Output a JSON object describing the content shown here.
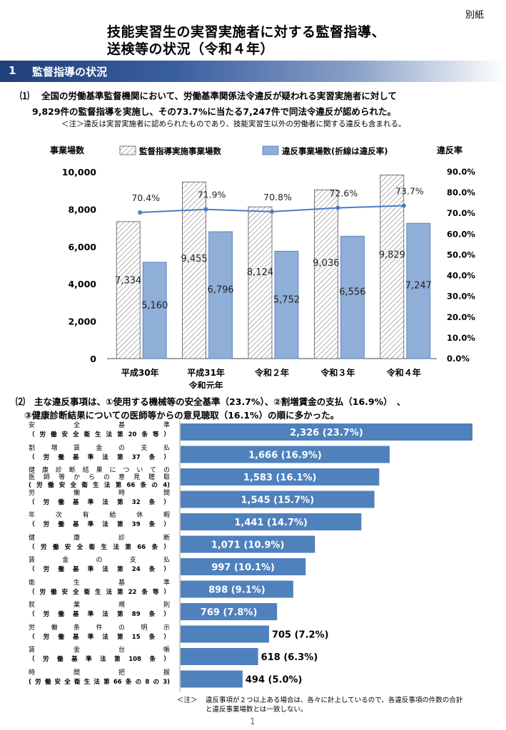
{
  "annex_label": "別紙",
  "title_line1": "技能実習生の実習実施者に対する監督指導、",
  "title_line2": "送検等の状況（令和４年）",
  "section": {
    "number": "1",
    "title": "監督指導の状況"
  },
  "para1": {
    "marker": "⑴",
    "line1": "全国の労働基準監督機関において、労働基準関係法令違反が疑われる実習実施者に対して",
    "line2": "9,829件の監督指導を実施し、その73.7%に当たる7,247件で同法令違反が認められた。",
    "note": "＜注＞違反は実習実施者に認められたものであり、技能実習生以外の労働者に関する違反も含まれる。"
  },
  "chart1": {
    "y_left_title": "事業場数",
    "y_right_title": "違反率",
    "legend": {
      "inspected": "監督指導実施事業場数",
      "violation": "違反事業場数(折線は違反率)"
    },
    "y_left_ticks": [
      "0",
      "2,000",
      "4,000",
      "6,000",
      "8,000",
      "10,000"
    ],
    "y_right_ticks": [
      "0.0%",
      "10.0%",
      "20.0%",
      "30.0%",
      "40.0%",
      "50.0%",
      "60.0%",
      "70.0%",
      "80.0%",
      "90.0%"
    ],
    "category_line1": [
      "平成30年",
      "平成31年",
      "令和２年",
      "令和３年",
      "令和４年"
    ],
    "category_line2": [
      "",
      "令和元年",
      "",
      "",
      ""
    ],
    "inspected_labels": [
      "7,334",
      "9,455",
      "8,124",
      "9,036",
      "9,829"
    ],
    "violation_labels": [
      "5,160",
      "6,796",
      "5,752",
      "6,556",
      "7,247"
    ],
    "rate_labels": [
      "70.4%",
      "71.9%",
      "70.8%",
      "72.6%",
      "73.7%"
    ]
  },
  "chart_data": [
    {
      "type": "bar",
      "categories": [
        "平成30年",
        "平成31年 令和元年",
        "令和２年",
        "令和３年",
        "令和４年"
      ],
      "series": [
        {
          "name": "監督指導実施事業場数",
          "values": [
            7334,
            9455,
            8124,
            9036,
            9829
          ]
        },
        {
          "name": "違反事業場数(折線は違反率)",
          "values": [
            5160,
            6796,
            5752,
            6556,
            7247
          ]
        }
      ],
      "line_series": {
        "values": [
          70.4,
          71.9,
          70.8,
          72.6,
          73.7
        ]
      },
      "ylabel": "事業場数",
      "ylabel_right": "違反率",
      "ylim": [
        0,
        10000
      ],
      "ylim_right": [
        0,
        90
      ],
      "grid": false,
      "legend": "top",
      "colors": {
        "inspected_hatch": "#7f7f7f",
        "violation_fill": "#8faed8",
        "violation_stroke": "#4f7bb8",
        "rate_line": "#4a7bc6"
      }
    },
    {
      "type": "bar",
      "orientation": "horizontal",
      "categories": [
        "安全基準",
        "割増賃金の支払",
        "健康診断結果についての医師等からの意見聴取",
        "労働時間",
        "年次有給休暇",
        "健康診断",
        "賃金の支払",
        "衛生基準",
        "就業規則",
        "労働条件の明示",
        "賃金台帳",
        "時間把握"
      ],
      "values": [
        2326,
        1666,
        1583,
        1545,
        1441,
        1071,
        997,
        898,
        769,
        705,
        618,
        494
      ],
      "percent": [
        23.7,
        16.9,
        16.1,
        15.7,
        14.7,
        10.9,
        10.1,
        9.1,
        7.8,
        7.2,
        6.3,
        5.0
      ],
      "colors": {
        "bar": "#4f81bd"
      }
    }
  ],
  "para2": {
    "marker": "⑵",
    "line1": "主な違反事項は、①使用する機械等の安全基準（23.7%）、②割増賃金の支払（16.9%）　、",
    "line2": "③健康診断結果についての医師等からの意見聴取（16.1%）の順に多かった。"
  },
  "hbar": {
    "rows": [
      {
        "name": "安全基準",
        "law": "（労働安全衛生法第20条等）",
        "label": "2,326 (23.7%)"
      },
      {
        "name": "割増賃金の支払",
        "law": "（労働基準法第37条）",
        "label": "1,666 (16.9%)"
      },
      {
        "name": "健康診断結果についての",
        "name2": "医師等からの意見聴取",
        "law": "(労働安全衛生法第66条の4)",
        "label": "1,583 (16.1%)"
      },
      {
        "name": "労働時間",
        "law": "（労働基準法第32条）",
        "label": "1,545 (15.7%)"
      },
      {
        "name": "年次有給休暇",
        "law": "（労働基準法第39条）",
        "label": "1,441 (14.7%)"
      },
      {
        "name": "健康診断",
        "law": "（労働安全衛生法第66条）",
        "label": "1,071 (10.9%)"
      },
      {
        "name": "賃金の支払",
        "law": "（労働基準法第24条）",
        "label": "997 (10.1%)"
      },
      {
        "name": "衛生基準",
        "law": "（労働安全衛生法第22条等）",
        "label": "898 (9.1%)"
      },
      {
        "name": "就業規則",
        "law": "（労働基準法第89条）",
        "label": "769 (7.8%)"
      },
      {
        "name": "労働条件の明示",
        "law": "（労働基準法第15条）",
        "label": "705 (7.2%)"
      },
      {
        "name": "賃金台帳",
        "law": "（労働基準法第108条）",
        "label": "618 (6.3%)"
      },
      {
        "name": "時間把握",
        "law": "(労働安全衛生法第66条の8の3)",
        "label": "494 (5.0%)"
      }
    ],
    "note_head": "＜注＞",
    "note_line1": "違反事項が２つ以上ある場合は、各々に計上しているので、各違反事項の件数の合計",
    "note_line2": "と違反事業場数とは一致しない。"
  },
  "page_number": "1"
}
